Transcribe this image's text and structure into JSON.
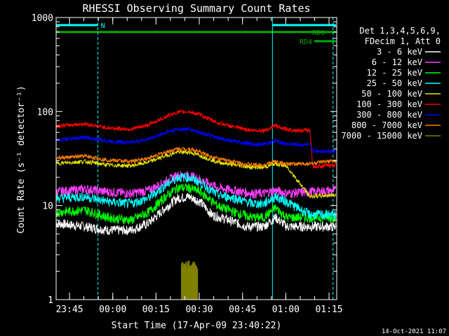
{
  "chart_data": {
    "type": "line",
    "title": "RHESSI Observing Summary Count Rates",
    "xlabel": "Start Time (17-Apr-09 23:40:22)",
    "ylabel": "Count Rate (s⁻¹ detector⁻¹)",
    "yscale": "log",
    "ylim": [
      1,
      1000
    ],
    "xlim": [
      "23:40:22",
      "01:17:40"
    ],
    "y_ticks": [
      "1",
      "10",
      "100",
      "1000"
    ],
    "x_ticks": [
      "23:45",
      "00:00",
      "00:15",
      "00:30",
      "00:45",
      "01:00",
      "01:15"
    ],
    "timestamp": "14-Oct-2021 11:07",
    "legend_header": [
      "Det 1,3,4,5,6,9,",
      "FDecim 1, Att 0"
    ],
    "legend_position": "right",
    "series": [
      {
        "name": "3 - 6 keV",
        "color": "#ffffff",
        "values": [
          [
            0.0,
            6.5
          ],
          [
            10.0,
            6.0
          ],
          [
            18.0,
            5.5
          ],
          [
            26.0,
            5.5
          ],
          [
            32.0,
            6.5
          ],
          [
            38.0,
            9.5
          ],
          [
            42.0,
            12.0
          ],
          [
            46.0,
            12.5
          ],
          [
            50.0,
            11.0
          ],
          [
            54.0,
            8.0
          ],
          [
            60.0,
            7.0
          ],
          [
            66.0,
            6.0
          ],
          [
            72.0,
            6.0
          ],
          [
            76.0,
            7.5
          ],
          [
            80.0,
            6.0
          ],
          [
            88.0,
            6.0
          ],
          [
            97.0,
            6.0
          ]
        ]
      },
      {
        "name": "6 - 12 keV",
        "color": "#ff40ff",
        "values": [
          [
            0.0,
            14.0
          ],
          [
            10.0,
            15.0
          ],
          [
            18.0,
            14.0
          ],
          [
            26.0,
            13.5
          ],
          [
            32.0,
            14.5
          ],
          [
            38.0,
            18.0
          ],
          [
            42.0,
            21.0
          ],
          [
            46.0,
            21.0
          ],
          [
            50.0,
            19.0
          ],
          [
            56.0,
            15.5
          ],
          [
            62.0,
            14.5
          ],
          [
            68.0,
            13.5
          ],
          [
            72.0,
            13.5
          ],
          [
            76.0,
            14.5
          ],
          [
            80.0,
            13.5
          ],
          [
            88.0,
            14.0
          ],
          [
            97.0,
            14.5
          ]
        ]
      },
      {
        "name": "12 - 25 keV",
        "color": "#00ff00",
        "values": [
          [
            0.0,
            8.5
          ],
          [
            10.0,
            9.0
          ],
          [
            18.0,
            7.5
          ],
          [
            26.0,
            7.0
          ],
          [
            32.0,
            8.5
          ],
          [
            38.0,
            12.5
          ],
          [
            42.0,
            15.5
          ],
          [
            46.0,
            15.5
          ],
          [
            50.0,
            14.0
          ],
          [
            56.0,
            10.0
          ],
          [
            62.0,
            8.5
          ],
          [
            68.0,
            7.5
          ],
          [
            72.0,
            7.5
          ],
          [
            76.0,
            9.5
          ],
          [
            80.0,
            7.5
          ],
          [
            88.0,
            7.5
          ],
          [
            97.0,
            7.5
          ]
        ]
      },
      {
        "name": "25 - 50 keV",
        "color": "#00ffff",
        "values": [
          [
            0.0,
            12.0
          ],
          [
            10.0,
            12.5
          ],
          [
            18.0,
            11.0
          ],
          [
            26.0,
            10.5
          ],
          [
            32.0,
            12.0
          ],
          [
            38.0,
            16.5
          ],
          [
            42.0,
            20.0
          ],
          [
            46.0,
            20.0
          ],
          [
            50.0,
            17.5
          ],
          [
            56.0,
            13.0
          ],
          [
            62.0,
            12.0
          ],
          [
            68.0,
            10.5
          ],
          [
            72.0,
            10.5
          ],
          [
            76.0,
            12.5
          ],
          [
            80.0,
            11.0
          ],
          [
            88.0,
            8.0
          ],
          [
            97.0,
            8.0
          ]
        ]
      },
      {
        "name": "50 - 100 keV",
        "color": "#e6e600",
        "values": [
          [
            0.0,
            28.0
          ],
          [
            10.0,
            29.5
          ],
          [
            18.0,
            27.0
          ],
          [
            26.0,
            26.5
          ],
          [
            32.0,
            29.0
          ],
          [
            38.0,
            34.0
          ],
          [
            42.0,
            37.0
          ],
          [
            46.0,
            37.0
          ],
          [
            50.0,
            34.0
          ],
          [
            56.0,
            29.0
          ],
          [
            62.0,
            27.0
          ],
          [
            68.0,
            25.5
          ],
          [
            72.0,
            25.5
          ],
          [
            76.0,
            28.0
          ],
          [
            80.0,
            26.0
          ],
          [
            88.0,
            12.5
          ],
          [
            97.0,
            13.0
          ]
        ]
      },
      {
        "name": "100 - 300 keV",
        "color": "#ff0000",
        "values": [
          [
            0.0,
            70.0
          ],
          [
            10.0,
            74.0
          ],
          [
            18.0,
            67.0
          ],
          [
            26.0,
            65.0
          ],
          [
            32.0,
            72.0
          ],
          [
            38.0,
            88.0
          ],
          [
            42.0,
            98.0
          ],
          [
            46.0,
            100.0
          ],
          [
            50.0,
            92.0
          ],
          [
            56.0,
            76.0
          ],
          [
            62.0,
            68.0
          ],
          [
            68.0,
            63.0
          ],
          [
            72.0,
            63.0
          ],
          [
            74.0,
            66.0
          ],
          [
            76.0,
            72.0
          ],
          [
            78.0,
            66.0
          ],
          [
            84.0,
            63.0
          ],
          [
            88.0,
            63.0
          ],
          [
            89.0,
            26.0
          ],
          [
            97.0,
            27.0
          ]
        ]
      },
      {
        "name": "300 - 800 keV",
        "color": "#0000ff",
        "values": [
          [
            0.0,
            50.0
          ],
          [
            10.0,
            53.0
          ],
          [
            18.0,
            48.5
          ],
          [
            26.0,
            47.0
          ],
          [
            32.0,
            51.0
          ],
          [
            38.0,
            60.0
          ],
          [
            42.0,
            65.0
          ],
          [
            46.0,
            65.0
          ],
          [
            50.0,
            60.0
          ],
          [
            56.0,
            52.0
          ],
          [
            62.0,
            48.0
          ],
          [
            68.0,
            45.0
          ],
          [
            72.0,
            45.0
          ],
          [
            76.0,
            49.0
          ],
          [
            80.0,
            45.0
          ],
          [
            88.0,
            44.0
          ],
          [
            89.0,
            38.0
          ],
          [
            97.0,
            38.0
          ]
        ]
      },
      {
        "name": "800 - 7000 keV",
        "color": "#ff8000",
        "values": [
          [
            0.0,
            32.0
          ],
          [
            10.0,
            33.5
          ],
          [
            18.0,
            30.5
          ],
          [
            26.0,
            29.5
          ],
          [
            32.0,
            32.0
          ],
          [
            38.0,
            37.0
          ],
          [
            42.0,
            40.0
          ],
          [
            46.0,
            40.0
          ],
          [
            50.0,
            37.0
          ],
          [
            56.0,
            31.5
          ],
          [
            62.0,
            29.0
          ],
          [
            68.0,
            27.0
          ],
          [
            72.0,
            27.0
          ],
          [
            76.0,
            29.5
          ],
          [
            80.0,
            27.5
          ],
          [
            88.0,
            28.0
          ],
          [
            97.0,
            30.0
          ]
        ]
      },
      {
        "name": "7000 - 15000 keV",
        "color": "#808000",
        "values": [
          [
            43.5,
            1.0
          ],
          [
            43.5,
            2.6
          ],
          [
            44.3,
            1.0
          ],
          [
            44.3,
            2.6
          ],
          [
            45.1,
            1.0
          ],
          [
            45.1,
            2.6
          ],
          [
            45.9,
            1.0
          ],
          [
            45.9,
            2.6
          ],
          [
            46.7,
            1.0
          ],
          [
            46.7,
            2.6
          ],
          [
            47.5,
            1.0
          ],
          [
            47.5,
            2.6
          ],
          [
            48.3,
            1.0
          ],
          [
            48.3,
            2.6
          ],
          [
            49.1,
            1.0
          ],
          [
            49.1,
            2.6
          ]
        ]
      }
    ],
    "flags": [
      {
        "name": "N",
        "color": "#00ffff",
        "segments": [
          [
            0.0,
            14.5
          ],
          [
            75.0,
            97.0
          ]
        ],
        "level": 830
      },
      {
        "name": "RD0",
        "color": "#00aa00",
        "segments": [
          [
            0.0,
            97.0
          ]
        ],
        "level": 700
      },
      {
        "name": "RD4",
        "color": "#00aa00",
        "segments": [
          [
            89.5,
            97.0
          ]
        ],
        "level": 560
      }
    ],
    "vlines": [
      {
        "x": 0.0,
        "style": "solid",
        "color": "#00ffff"
      },
      {
        "x": 14.5,
        "style": "dashed",
        "color": "#00ffff"
      },
      {
        "x": 75.0,
        "style": "solid",
        "color": "#00ffff"
      },
      {
        "x": 96.0,
        "style": "dashed",
        "color": "#00ffff"
      }
    ]
  }
}
